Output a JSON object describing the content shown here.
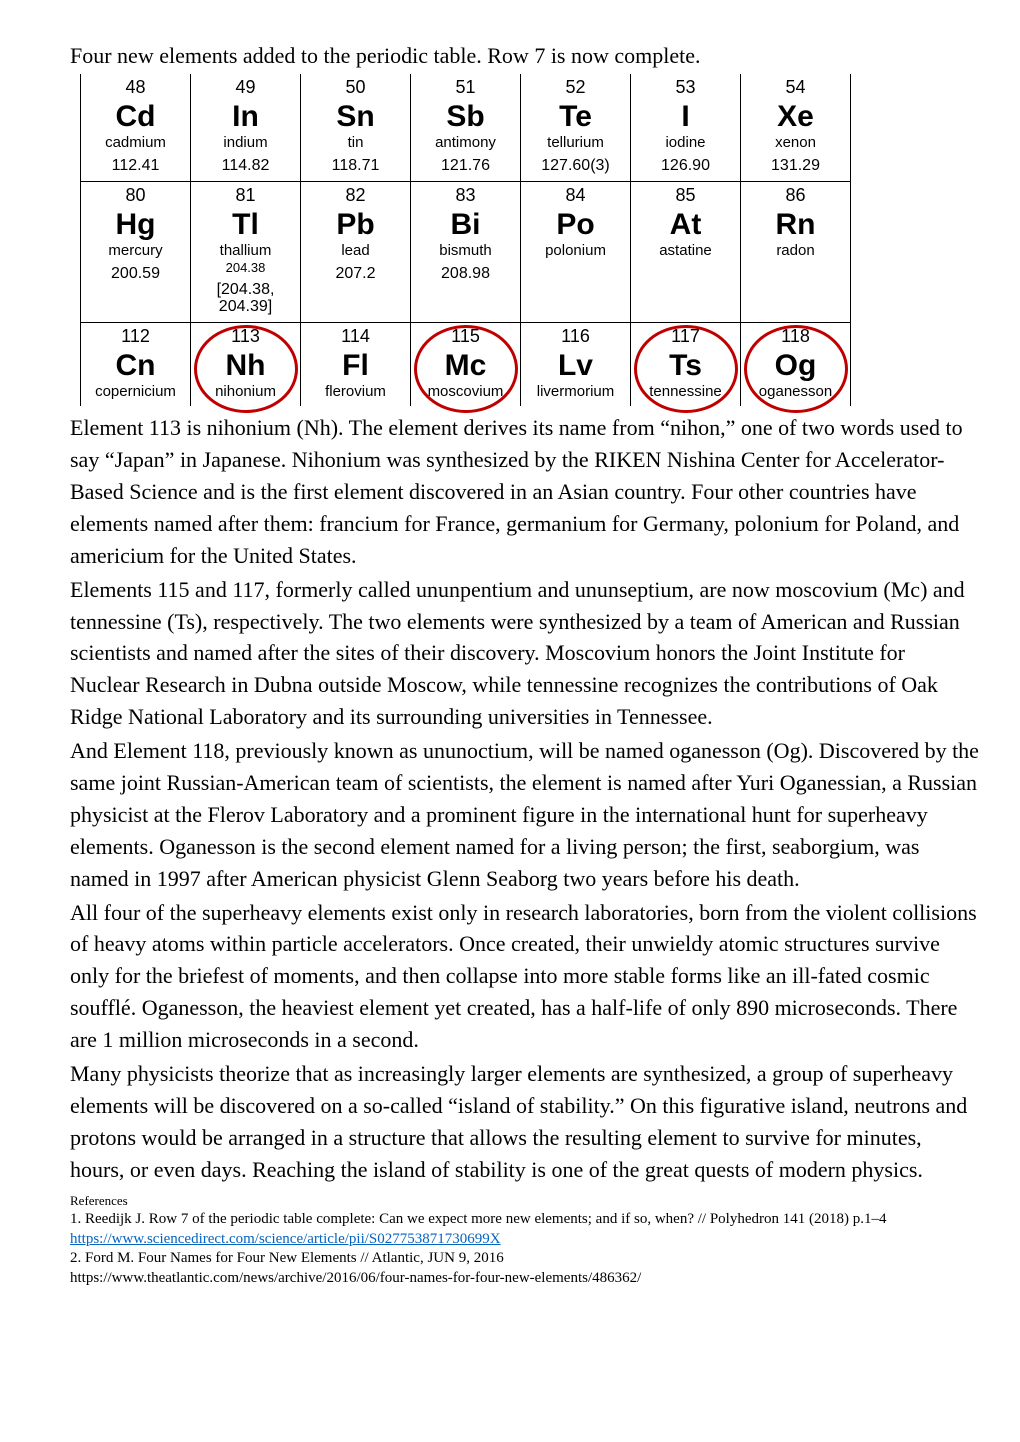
{
  "headline": "Four new elements added to the periodic table. Row 7 is now complete.",
  "highlight_color": "#c00000",
  "table": {
    "rows": [
      [
        {
          "num": "48",
          "sym": "Cd",
          "name": "cadmium",
          "mass": "112.41",
          "sub": ""
        },
        {
          "num": "49",
          "sym": "In",
          "name": "indium",
          "mass": "114.82",
          "sub": ""
        },
        {
          "num": "50",
          "sym": "Sn",
          "name": "tin",
          "mass": "118.71",
          "sub": ""
        },
        {
          "num": "51",
          "sym": "Sb",
          "name": "antimony",
          "mass": "121.76",
          "sub": ""
        },
        {
          "num": "52",
          "sym": "Te",
          "name": "tellurium",
          "mass": "127.60(3)",
          "sub": ""
        },
        {
          "num": "53",
          "sym": "I",
          "name": "iodine",
          "mass": "126.90",
          "sub": ""
        },
        {
          "num": "54",
          "sym": "Xe",
          "name": "xenon",
          "mass": "131.29",
          "sub": ""
        }
      ],
      [
        {
          "num": "80",
          "sym": "Hg",
          "name": "mercury",
          "mass": "200.59",
          "sub": ""
        },
        {
          "num": "81",
          "sym": "Tl",
          "name": "thallium",
          "mass": "[204.38, 204.39]",
          "sub": "204.38"
        },
        {
          "num": "82",
          "sym": "Pb",
          "name": "lead",
          "mass": "207.2",
          "sub": ""
        },
        {
          "num": "83",
          "sym": "Bi",
          "name": "bismuth",
          "mass": "208.98",
          "sub": ""
        },
        {
          "num": "84",
          "sym": "Po",
          "name": "polonium",
          "mass": "",
          "sub": ""
        },
        {
          "num": "85",
          "sym": "At",
          "name": "astatine",
          "mass": "",
          "sub": ""
        },
        {
          "num": "86",
          "sym": "Rn",
          "name": "radon",
          "mass": "",
          "sub": ""
        }
      ],
      [
        {
          "num": "112",
          "sym": "Cn",
          "name": "copernicium",
          "mass": "",
          "sub": "",
          "hl": false
        },
        {
          "num": "113",
          "sym": "Nh",
          "name": "nihonium",
          "mass": "",
          "sub": "",
          "hl": true
        },
        {
          "num": "114",
          "sym": "Fl",
          "name": "flerovium",
          "mass": "",
          "sub": "",
          "hl": false
        },
        {
          "num": "115",
          "sym": "Mc",
          "name": "moscovium",
          "mass": "",
          "sub": "",
          "hl": true
        },
        {
          "num": "116",
          "sym": "Lv",
          "name": "livermorium",
          "mass": "",
          "sub": "",
          "hl": false
        },
        {
          "num": "117",
          "sym": "Ts",
          "name": "tennessine",
          "mass": "",
          "sub": "",
          "hl": true
        },
        {
          "num": "118",
          "sym": "Og",
          "name": "oganesson",
          "mass": "",
          "sub": "",
          "hl": true
        }
      ]
    ]
  },
  "paragraphs": [
    "Element 113 is nihonium (Nh). The element derives its name from “nihon,” one of two words used to say “Japan” in Japanese. Nihonium was synthesized by the RIKEN Nishina Center for Accelerator-Based Science and is the first element discovered in an Asian country. Four other countries have elements named after them: francium for France, germanium for Germany, polonium for Poland, and americium for the United States.",
    "Elements 115 and 117, formerly called ununpentium and ununseptium, are now moscovium (Mc) and tennessine (Ts), respectively. The two elements were synthesized by a team of American and Russian scientists and named after the sites of their discovery. Moscovium honors the Joint Institute for Nuclear Research in Dubna outside Moscow, while tennessine recognizes the contributions of Oak Ridge National Laboratory and its surrounding universities in Tennessee.",
    "And Element 118, previously known as ununoctium, will be named oganesson (Og). Discovered by the same joint Russian-American team of scientists, the element is named after Yuri Oganessian, a Russian physicist at the Flerov Laboratory and a prominent figure in the international hunt for superheavy elements. Oganesson is the second element named for a living person; the first, seaborgium, was named in 1997 after American physicist Glenn Seaborg two years before his death.",
    "All four of the superheavy elements exist only in research laboratories, born from the violent collisions of heavy atoms within particle accelerators. Once created, their unwieldy atomic structures survive only for the briefest of moments, and then collapse into more stable forms like an ill-fated cosmic soufflé. Oganesson, the heaviest element yet created, has a half-life of only 890 microseconds. There are 1 million microseconds in a second.",
    "Many physicists theorize that as increasingly larger elements are synthesized, a group of superheavy elements will be discovered on a so-called “island of stability.” On this figurative island, neutrons and protons would be arranged in a structure that allows the resulting element to survive for minutes, hours, or even days. Reaching the island of stability is one of the great quests of modern physics."
  ],
  "refs_heading": "References",
  "refs": [
    {
      "text": "1. Reedijk J. Row 7 of the periodic table complete: Can we expect more new elements; and if so, when? // Polyhedron 141 (2018) p.1–4"
    },
    {
      "link": "https://www.sciencedirect.com/science/article/pii/S027753871730699X"
    },
    {
      "text": "2. Ford M. Four Names for Four New Elements // Atlantic,  JUN 9, 2016"
    },
    {
      "text": " https://www.theatlantic.com/news/archive/2016/06/four-names-for-four-new-elements/486362/"
    }
  ]
}
